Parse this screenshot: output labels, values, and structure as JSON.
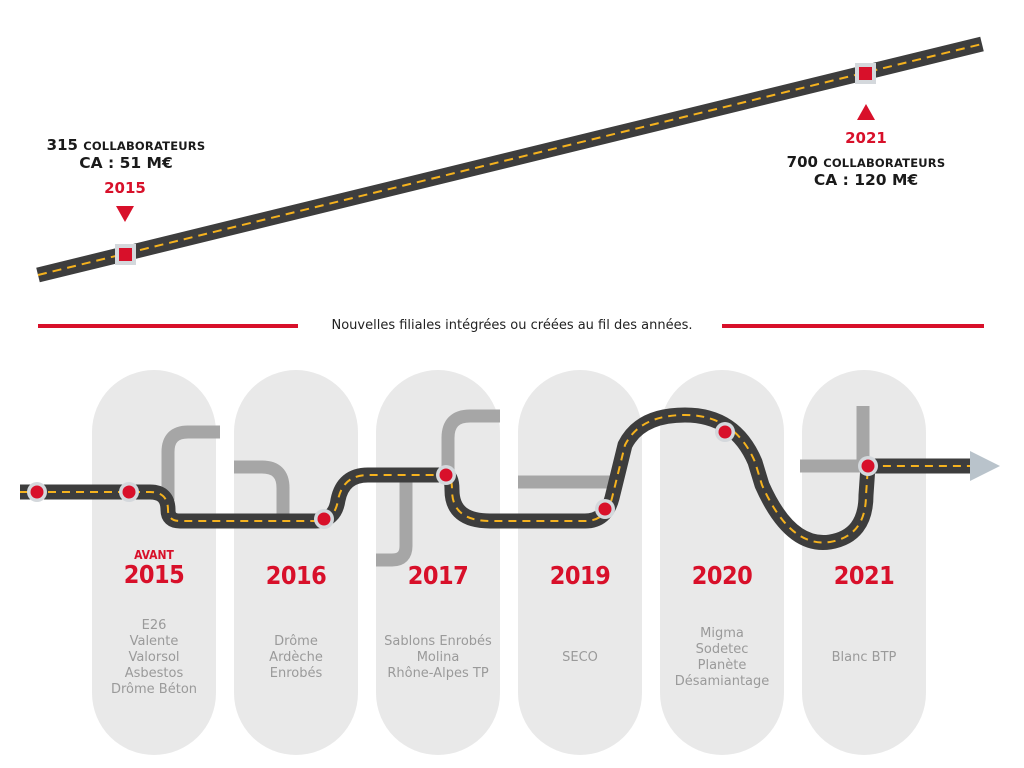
{
  "top": {
    "start": {
      "employees_number": "315",
      "employees_label": "COLLABORATEURS",
      "revenue": "CA : 51 M€",
      "year": "2015"
    },
    "end": {
      "year": "2021",
      "employees_number": "700",
      "employees_label": "COLLABORATEURS",
      "revenue": "CA : 120 M€"
    }
  },
  "caption": "Nouvelles filiales intégrées ou créées au fil des années.",
  "columns": [
    {
      "prefix": "AVANT",
      "year": "2015",
      "items": [
        "E26",
        "Valente",
        "Valorsol",
        "Asbestos",
        "Drôme Béton"
      ]
    },
    {
      "prefix": "",
      "year": "2016",
      "items": [
        "Drôme",
        "Ardèche",
        "Enrobés"
      ]
    },
    {
      "prefix": "",
      "year": "2017",
      "items": [
        "Sablons Enrobés",
        "Molina",
        "Rhône-Alpes TP"
      ]
    },
    {
      "prefix": "",
      "year": "2019",
      "items": [
        "SECO"
      ]
    },
    {
      "prefix": "",
      "year": "2020",
      "items": [
        "Migma",
        "Sodetec",
        "Planète",
        "Désamiantage"
      ]
    },
    {
      "prefix": "",
      "year": "2021",
      "items": [
        "Blanc BTP"
      ]
    }
  ],
  "colors": {
    "road": "#3d3d3d",
    "road_marking": "#f5b21e",
    "accent_red": "#d8102a",
    "pill": "#e9e9e9",
    "side_road": "#a6a6a6",
    "arrow": "#b9c3cb"
  }
}
